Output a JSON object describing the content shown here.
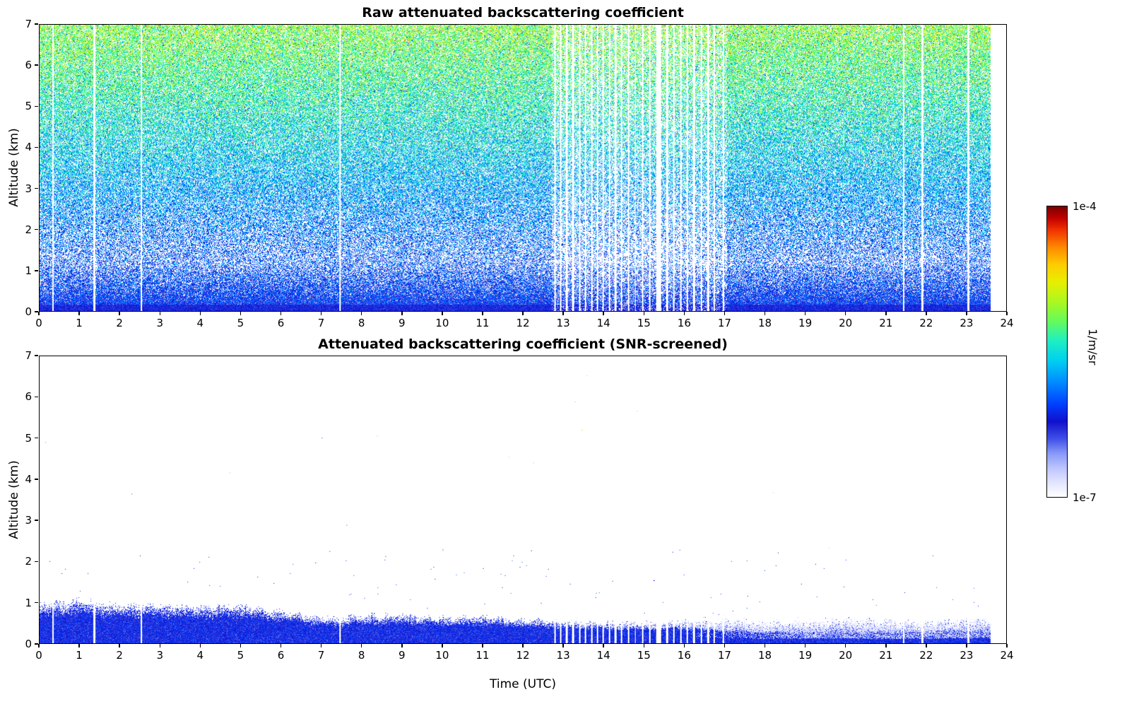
{
  "figure": {
    "background": "#ffffff",
    "colorbar": {
      "max_label": "1e-4",
      "min_label": "1e-7",
      "units_label": "1/m/sr",
      "scale": "log",
      "min_value": 1e-07,
      "max_value": 0.0001,
      "gradient_stops": [
        [
          0.0,
          "#ffffff"
        ],
        [
          0.05,
          "#e2e4ff"
        ],
        [
          0.1,
          "#bcc4ff"
        ],
        [
          0.15,
          "#8898f8"
        ],
        [
          0.2,
          "#4050e8"
        ],
        [
          0.26,
          "#1010cc"
        ],
        [
          0.32,
          "#0040ff"
        ],
        [
          0.4,
          "#0090ff"
        ],
        [
          0.47,
          "#00d0f0"
        ],
        [
          0.54,
          "#20f0c0"
        ],
        [
          0.6,
          "#60fa60"
        ],
        [
          0.67,
          "#aaf820"
        ],
        [
          0.74,
          "#e8ee00"
        ],
        [
          0.8,
          "#ffcc00"
        ],
        [
          0.86,
          "#ff8800"
        ],
        [
          0.92,
          "#f03000"
        ],
        [
          0.96,
          "#c00000"
        ],
        [
          1.0,
          "#7a0000"
        ]
      ]
    }
  },
  "chart_data": [
    {
      "type": "heatmap",
      "panel": "top",
      "title": "Raw attenuated backscattering coefficient",
      "xlabel": "",
      "ylabel": "Altitude (km)",
      "xlim": [
        0,
        24
      ],
      "ylim": [
        0,
        7
      ],
      "x_ticks": [
        0,
        1,
        2,
        3,
        4,
        5,
        6,
        7,
        8,
        9,
        10,
        11,
        12,
        13,
        14,
        15,
        16,
        17,
        18,
        19,
        20,
        21,
        22,
        23,
        24
      ],
      "y_ticks": [
        0,
        1,
        2,
        3,
        4,
        5,
        6,
        7
      ],
      "colorbar_units": "1/m/sr",
      "value_range_1_per_m_sr": [
        1e-07,
        0.0001
      ],
      "grid": false,
      "legend": "colorbar-right",
      "data_end_hour": 23.6,
      "gap_hours": [
        [
          0.3,
          0.34
        ],
        [
          1.33,
          1.37
        ],
        [
          2.5,
          2.54
        ],
        [
          7.43,
          7.47
        ],
        [
          12.78,
          12.81
        ],
        [
          12.92,
          12.95
        ],
        [
          13.05,
          13.1
        ],
        [
          13.22,
          13.27
        ],
        [
          13.38,
          13.42
        ],
        [
          13.52,
          13.56
        ],
        [
          13.68,
          13.72
        ],
        [
          13.82,
          13.86
        ],
        [
          13.97,
          14.01
        ],
        [
          14.12,
          14.16
        ],
        [
          14.27,
          14.31
        ],
        [
          14.42,
          14.46
        ],
        [
          14.6,
          14.63
        ],
        [
          14.77,
          14.8
        ],
        [
          14.95,
          14.99
        ],
        [
          15.12,
          15.16
        ],
        [
          15.3,
          15.42
        ],
        [
          15.55,
          15.6
        ],
        [
          15.72,
          15.76
        ],
        [
          15.9,
          15.94
        ],
        [
          16.05,
          16.09
        ],
        [
          16.22,
          16.26
        ],
        [
          16.4,
          16.44
        ],
        [
          16.57,
          16.61
        ],
        [
          16.72,
          16.76
        ],
        [
          16.95,
          16.99
        ],
        [
          21.43,
          21.47
        ],
        [
          21.88,
          21.93
        ],
        [
          23.02,
          23.07
        ],
        [
          23.6,
          24.0
        ]
      ],
      "noise_model": {
        "surface_norm_value": 0.27,
        "norm_slope_per_km": 0.052,
        "white_gap_boost_hours": [
          12.7,
          17.05
        ],
        "solid_blue_band_top_km": 0.16
      },
      "pattern": "Dense dark-blue signal layer below ~1 km; speckled range-corrected noise aloft whose mean value rises with altitude from blue (~1e-6) through cyan and green to yellow/orange (~1e-5) near 7 km, with sparse red outliers; vertical white stripes mark missing profiles, densest between 13 and 17 UTC; record ends at 23.6 UTC."
    },
    {
      "type": "heatmap",
      "panel": "bottom",
      "title": "Attenuated backscattering coefficient (SNR-screened)",
      "xlabel": "Time (UTC)",
      "ylabel": "Altitude (km)",
      "xlim": [
        0,
        24
      ],
      "ylim": [
        0,
        7
      ],
      "x_ticks": [
        0,
        1,
        2,
        3,
        4,
        5,
        6,
        7,
        8,
        9,
        10,
        11,
        12,
        13,
        14,
        15,
        16,
        17,
        18,
        19,
        20,
        21,
        22,
        23,
        24
      ],
      "y_ticks": [
        0,
        1,
        2,
        3,
        4,
        5,
        6,
        7
      ],
      "colorbar_units": "1/m/sr",
      "value_range_1_per_m_sr": [
        1e-07,
        0.0001
      ],
      "grid": false,
      "legend": "colorbar-right",
      "data_end_hour": 23.6,
      "layer_hours": [
        0,
        1,
        2,
        3,
        4,
        5,
        6,
        7,
        8,
        9,
        10,
        11,
        12,
        13,
        14,
        15,
        16,
        17,
        18,
        19,
        20,
        21,
        22,
        23,
        24
      ],
      "layer_solid_top_km": [
        0.72,
        0.78,
        0.7,
        0.72,
        0.68,
        0.7,
        0.6,
        0.48,
        0.5,
        0.52,
        0.48,
        0.5,
        0.46,
        0.42,
        0.4,
        0.38,
        0.4,
        0.34,
        0.3,
        0.3,
        0.32,
        0.3,
        0.3,
        0.34,
        0.34
      ],
      "layer_ragged_top_km": [
        1.0,
        1.08,
        0.95,
        0.95,
        0.92,
        0.95,
        0.8,
        0.62,
        0.68,
        0.72,
        0.62,
        0.66,
        0.6,
        0.56,
        0.55,
        0.52,
        0.56,
        0.62,
        0.56,
        0.56,
        0.62,
        0.58,
        0.56,
        0.62,
        0.62
      ],
      "pattern": "SNR screening removes all noise aloft (white); only the aerosol boundary layer remains as solid blue below ~1 km, deepest (~1 km) from 0-6 UTC, shallower (~0.5 km) midday; after ~12 UTC a pale light-blue fringe tops the layer; rare isolated specks above; same white data gaps as the raw panel."
    }
  ]
}
